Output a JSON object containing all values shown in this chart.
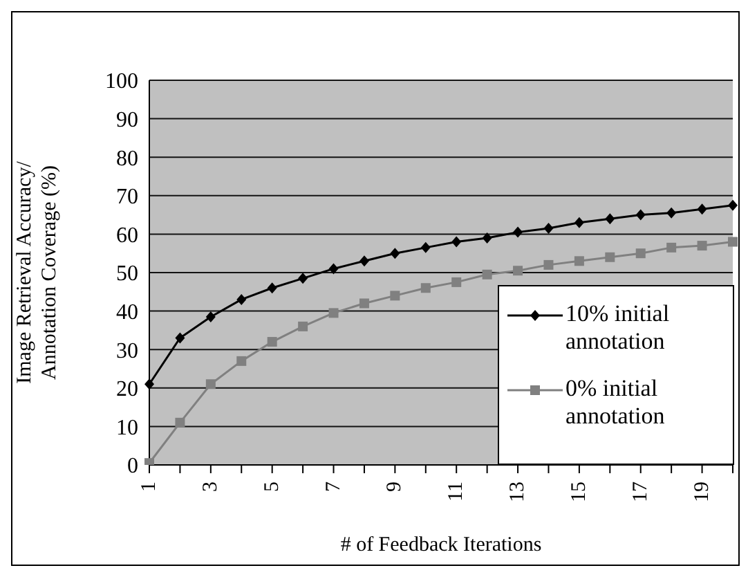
{
  "chart_data": {
    "type": "line",
    "xlabel": "# of Feedback Iterations",
    "ylabel": "Image Retrieval Accuracy/ Annotation Coverage (%)",
    "categories": [
      "1",
      null,
      "3",
      null,
      "5",
      null,
      "7",
      null,
      "9",
      null,
      "11",
      null,
      "13",
      null,
      "15",
      null,
      "17",
      null,
      "19",
      null
    ],
    "series": [
      {
        "name": "10% initial annotation",
        "color": "#000000",
        "marker": "diamond",
        "values": [
          21,
          33,
          38.5,
          43,
          46,
          48.5,
          51,
          53,
          55,
          56.5,
          58,
          59,
          60.5,
          61.5,
          63,
          64,
          65,
          65.5,
          66.5,
          67.5
        ]
      },
      {
        "name": "0% initial annotation",
        "color": "#808080",
        "marker": "square",
        "values": [
          0.5,
          11,
          21,
          27,
          32,
          36,
          39.5,
          42,
          44,
          46,
          47.5,
          49.5,
          50.5,
          52,
          53,
          54,
          55,
          56.5,
          57,
          58
        ]
      }
    ],
    "ylim": [
      0,
      100
    ],
    "yticks": [
      0,
      10,
      20,
      30,
      40,
      50,
      60,
      70,
      80,
      90,
      100
    ],
    "grid": "y",
    "legend": "bottom right",
    "line_style": "solid"
  }
}
